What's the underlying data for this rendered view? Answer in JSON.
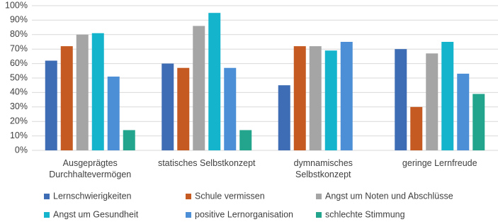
{
  "chart_data": {
    "type": "bar",
    "categories": [
      "Ausgeprägtes Durchhaltevermögen",
      "statisches Selbstkonzept",
      "dymnamisches Selbstkonzept",
      "geringe Lernfreude"
    ],
    "series": [
      {
        "name": "Lernschwierigkeiten",
        "color": "#3e6db5",
        "values": [
          62,
          60,
          45,
          70
        ]
      },
      {
        "name": "Schule vermissen",
        "color": "#c55a22",
        "values": [
          72,
          57,
          72,
          30
        ]
      },
      {
        "name": "Angst um Noten und Abschlüsse",
        "color": "#a5a5a5",
        "values": [
          80,
          86,
          72,
          67
        ]
      },
      {
        "name": "Angst um Gesundheit",
        "color": "#14b4cc",
        "values": [
          81,
          95,
          69,
          75
        ]
      },
      {
        "name": "positive Lernorganisation",
        "color": "#4d8fd6",
        "values": [
          51,
          57,
          75,
          53
        ]
      },
      {
        "name": "schlechte Stimmung",
        "color": "#22a58c",
        "values": [
          14,
          14,
          null,
          39
        ]
      }
    ],
    "ylim": [
      0,
      100
    ],
    "yticks": [
      {
        "value": 0,
        "label": "0%"
      },
      {
        "value": 10,
        "label": "10%"
      },
      {
        "value": 20,
        "label": "20%"
      },
      {
        "value": 30,
        "label": "30%"
      },
      {
        "value": 40,
        "label": "40%"
      },
      {
        "value": 50,
        "label": "50%"
      },
      {
        "value": 60,
        "label": "60%"
      },
      {
        "value": 70,
        "label": "70%"
      },
      {
        "value": 80,
        "label": "80%"
      },
      {
        "value": 90,
        "label": "90%"
      },
      {
        "value": 100,
        "label": "100%"
      }
    ],
    "grid": true
  }
}
